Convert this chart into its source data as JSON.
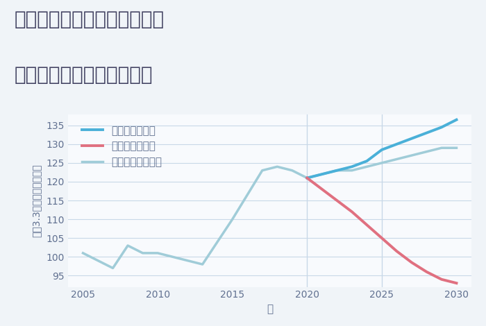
{
  "title_line1": "愛知県名古屋市南区汐田町の",
  "title_line2": "中古マンションの価格推移",
  "xlabel": "年",
  "ylabel": "坪（3.3㎡）単価（万円）",
  "background_color": "#f0f4f8",
  "plot_bg_color": "#f8fafd",
  "grid_color": "#c8d8e8",
  "good_color": "#4ab0d8",
  "bad_color": "#e07080",
  "normal_color": "#a0ccd8",
  "legend_labels": [
    "グッドシナリオ",
    "バッドシナリオ",
    "ノーマルシナリオ"
  ],
  "ylim": [
    92,
    138
  ],
  "yticks": [
    95,
    100,
    105,
    110,
    115,
    120,
    125,
    130,
    135
  ],
  "xlim": [
    2004,
    2031
  ],
  "xticks": [
    2005,
    2010,
    2015,
    2020,
    2025,
    2030
  ],
  "vlines": [
    2020,
    2025
  ],
  "normal_x": [
    2005,
    2007,
    2008,
    2009,
    2010,
    2013,
    2015,
    2017,
    2018,
    2019,
    2020,
    2021,
    2022,
    2023,
    2024,
    2025,
    2026,
    2027,
    2028,
    2029,
    2030
  ],
  "normal_y": [
    101,
    97,
    103,
    101,
    101,
    98,
    110,
    123,
    124,
    123,
    121,
    122,
    123,
    123,
    124,
    125,
    126,
    127,
    128,
    129,
    129
  ],
  "good_x": [
    2020,
    2021,
    2022,
    2023,
    2024,
    2025,
    2026,
    2027,
    2028,
    2029,
    2030
  ],
  "good_y": [
    121,
    122,
    123,
    124,
    125.5,
    128.5,
    130,
    131.5,
    133,
    134.5,
    136.5
  ],
  "bad_x": [
    2020,
    2021,
    2022,
    2023,
    2024,
    2025,
    2026,
    2027,
    2028,
    2029,
    2030
  ],
  "bad_y": [
    121,
    118,
    115,
    112,
    108.5,
    105,
    101.5,
    98.5,
    96,
    94,
    93
  ],
  "title_color": "#404060",
  "title_fontsize": 20,
  "axis_label_color": "#607090",
  "tick_color": "#607090",
  "legend_fontsize": 11
}
